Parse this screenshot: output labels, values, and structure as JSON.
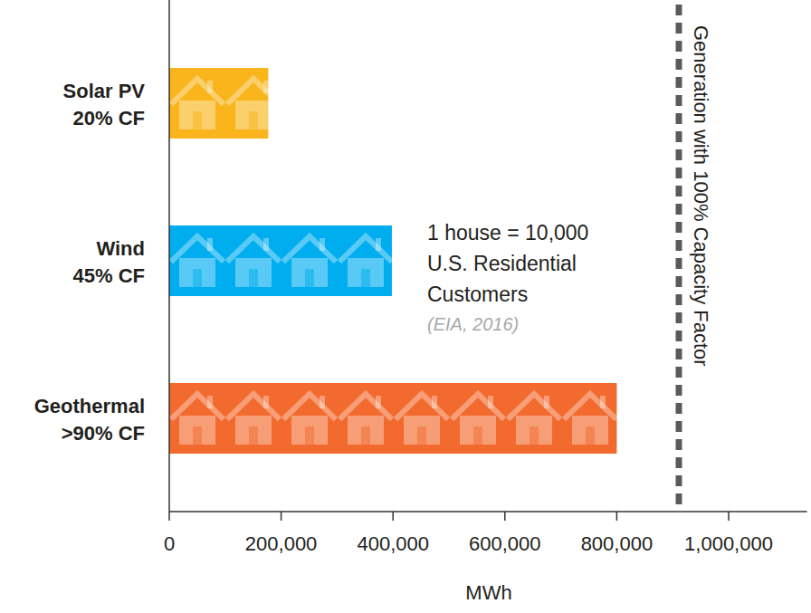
{
  "chart_data": {
    "type": "bar",
    "orientation": "horizontal",
    "categories": [
      "Solar PV",
      "Wind",
      "Geothermal"
    ],
    "category_sublabels": [
      "20% CF",
      "45% CF",
      ">90% CF"
    ],
    "values": [
      177000,
      398000,
      800000
    ],
    "colors": [
      "#f9b51b",
      "#00aeef",
      "#f26a2e"
    ],
    "x_label": "MWh",
    "xlim": [
      0,
      1140000
    ],
    "xticks": [
      0,
      {
        "value": 200000,
        "label": "200,000"
      },
      {
        "value": 400000,
        "label": "400,000"
      },
      {
        "value": 600000,
        "label": "600,000"
      },
      {
        "value": 800000,
        "label": "800,000"
      },
      {
        "value": 1000000,
        "label": "1,000,000"
      }
    ],
    "reference": {
      "value": 911000,
      "label": "Generation with 100% Capacity Factor"
    },
    "annotation": {
      "lines": [
        "1 house = 10,000",
        "U.S. Residential",
        "Customers"
      ],
      "source": "(EIA, 2016)"
    }
  }
}
